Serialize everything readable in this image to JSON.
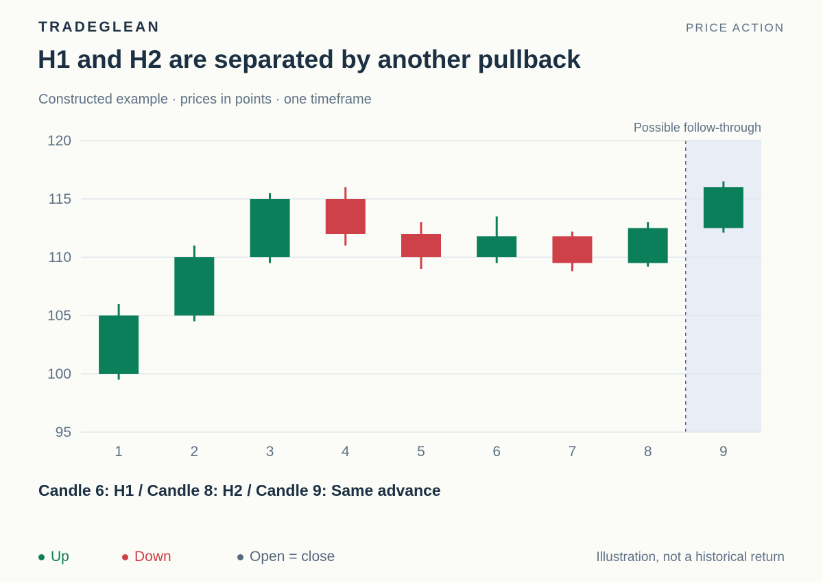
{
  "header": {
    "brand": "TRADEGLEAN",
    "section": "PRICE ACTION",
    "title": "H1 and H2 are separated by another pullback",
    "subtitle": "Constructed example · prices in points · one timeframe"
  },
  "callout": "Candle 6: H1 / Candle 8: H2 / Candle 9: Same advance",
  "legend": [
    {
      "label": "Up",
      "color": "#0a7f5a"
    },
    {
      "label": "Down",
      "color": "#cf4148"
    },
    {
      "label": "Open = close",
      "color": "#56687c"
    }
  ],
  "footnote": "Illustration, not a historical return",
  "chart_data": {
    "type": "candlestick",
    "categories": [
      "1",
      "2",
      "3",
      "4",
      "5",
      "6",
      "7",
      "8",
      "9"
    ],
    "ylim": [
      95,
      120
    ],
    "yticks": [
      95,
      100,
      105,
      110,
      115,
      120
    ],
    "grid": true,
    "colors": {
      "up": "#0a7f5a",
      "down": "#cf4148",
      "grid": "#dde3ea",
      "shade": "#e9eef6",
      "axis_text": "#5f7286"
    },
    "candles": [
      {
        "x": "1",
        "open": 100,
        "high": 106,
        "low": 99.5,
        "close": 105
      },
      {
        "x": "2",
        "open": 105,
        "high": 111,
        "low": 104.5,
        "close": 110
      },
      {
        "x": "3",
        "open": 110,
        "high": 115.5,
        "low": 109.5,
        "close": 115
      },
      {
        "x": "4",
        "open": 115,
        "high": 116,
        "low": 111,
        "close": 112
      },
      {
        "x": "5",
        "open": 112,
        "high": 113,
        "low": 109,
        "close": 110
      },
      {
        "x": "6",
        "open": 110,
        "high": 113.5,
        "low": 109.5,
        "close": 111.8
      },
      {
        "x": "7",
        "open": 111.8,
        "high": 112.2,
        "low": 108.8,
        "close": 109.5
      },
      {
        "x": "8",
        "open": 109.5,
        "high": 113,
        "low": 109.2,
        "close": 112.5
      },
      {
        "x": "9",
        "open": 112.5,
        "high": 116.5,
        "low": 112.1,
        "close": 116
      }
    ],
    "shaded_region": {
      "from_category": "9",
      "label": "Possible follow-through"
    }
  }
}
